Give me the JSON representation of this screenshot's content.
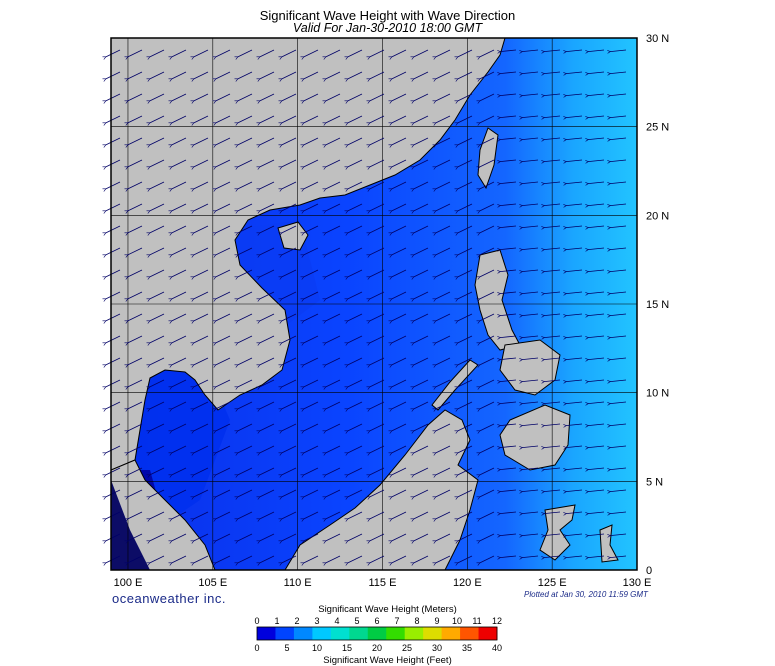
{
  "header": {
    "title": "Significant Wave Height with Wave Direction",
    "subtitle": "Valid For Jan-30-2010 18:00 GMT"
  },
  "map": {
    "lon_range": [
      99,
      130
    ],
    "lat_range": [
      0,
      30
    ],
    "lon_labels": [
      "100 E",
      "105 E",
      "110 E",
      "115 E",
      "120 E",
      "125 E",
      "130 E"
    ],
    "lat_labels": [
      "30 N",
      "25 N",
      "20 N",
      "15 N",
      "10 N",
      "5 N",
      "0"
    ],
    "land_color": "#c0c0c0",
    "sea_colors": [
      "#0000cc",
      "#0024ee",
      "#0a4cff",
      "#1a7cff",
      "#22bbff"
    ]
  },
  "footer": {
    "brand": "oceanweather inc.",
    "plotted": "Plotted at Jan 30, 2010 11:59 GMT"
  },
  "legend": {
    "title_meters": "Significant Wave Height (Meters)",
    "title_feet": "Significant Wave Height (Feet)",
    "meters": [
      "0",
      "1",
      "2",
      "3",
      "4",
      "5",
      "6",
      "7",
      "8",
      "9",
      "10",
      "11",
      "12"
    ],
    "feet": [
      "0",
      "5",
      "10",
      "15",
      "20",
      "25",
      "30",
      "35",
      "40"
    ],
    "colors": [
      "#0000dd",
      "#0044ff",
      "#0088ff",
      "#00c8ff",
      "#00e0d0",
      "#00d890",
      "#00cc44",
      "#33dd00",
      "#99ee00",
      "#dddd00",
      "#ffaa00",
      "#ff5500",
      "#ee0000"
    ]
  }
}
